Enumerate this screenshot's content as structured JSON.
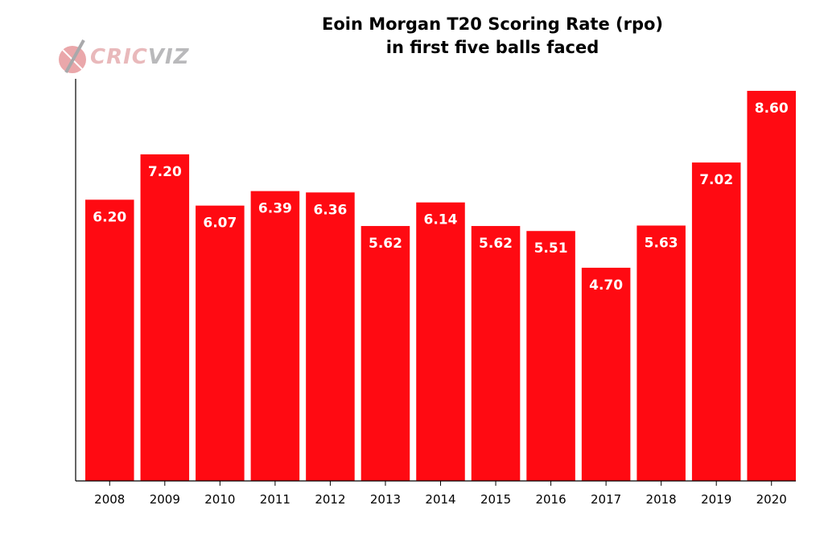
{
  "logo": {
    "part1": "CRIC",
    "part2": "VIZ"
  },
  "chart_data": {
    "type": "bar",
    "title_line1": "Eoin Morgan T20 Scoring Rate (rpo)",
    "title_line2": "in first five balls faced",
    "xlabel": "",
    "ylabel": "",
    "categories": [
      "2008",
      "2009",
      "2010",
      "2011",
      "2012",
      "2013",
      "2014",
      "2015",
      "2016",
      "2017",
      "2018",
      "2019",
      "2020"
    ],
    "values": [
      6.2,
      7.2,
      6.07,
      6.39,
      6.36,
      5.62,
      6.14,
      5.62,
      5.51,
      4.7,
      5.63,
      7.02,
      8.6
    ],
    "labels": [
      "6.20",
      "7.20",
      "6.07",
      "6.39",
      "6.36",
      "5.62",
      "6.14",
      "5.62",
      "5.51",
      "4.70",
      "5.63",
      "7.02",
      "8.60"
    ],
    "ylim": [
      0,
      8.75
    ],
    "bar_color": "#ff0a12",
    "label_color": "#ffffff",
    "grid": false,
    "legend": "none"
  }
}
